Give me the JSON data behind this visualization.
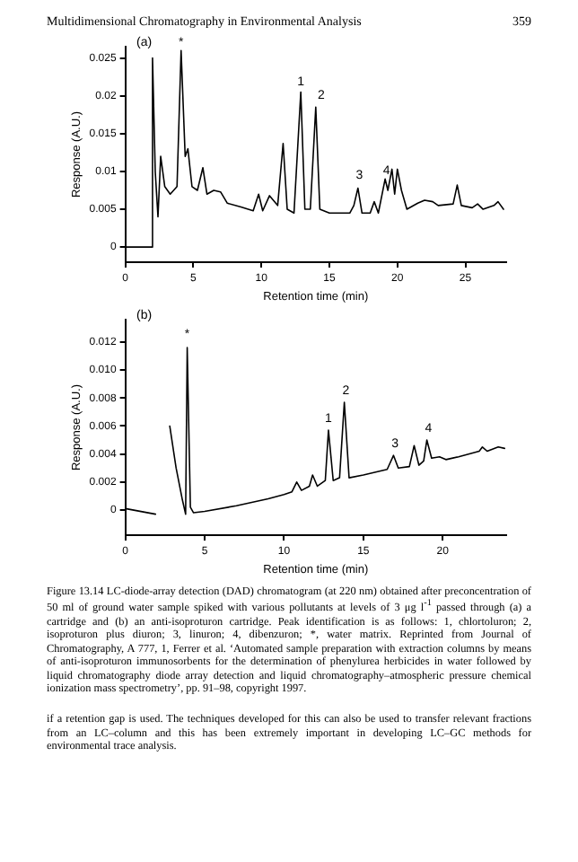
{
  "chart_data": [
    {
      "type": "line",
      "title": "Multidimensional Chromatography in Environmental Analysis",
      "subtitle": "359",
      "xlabel": "Retention time (min)",
      "ylabel": "Response (A.U.)",
      "color": "#000000",
      "legend": false,
      "grid": false,
      "x": [
        0,
        1.9,
        2.0,
        2.2,
        2.4,
        2.6,
        2.9,
        3.3,
        3.8,
        4.1,
        4.4,
        4.6,
        4.9,
        5.3,
        5.7,
        6.0,
        6.5,
        7.0,
        7.5,
        8.5,
        9.4,
        9.8,
        10.1,
        10.6,
        11.2,
        11.6,
        11.9,
        12.4,
        12.9,
        13.2,
        13.6,
        14.0,
        14.3,
        15,
        16.5,
        16.8,
        17.1,
        17.4,
        18.0,
        18.3,
        18.6,
        19.1,
        19.3,
        19.6,
        19.8,
        20.0,
        20.3,
        20.7,
        21.5,
        22.0,
        22.6,
        23,
        24.1,
        24.4,
        24.7,
        25.5,
        25.9,
        26.3,
        27.1,
        27.4,
        27.8
      ],
      "values": [
        0,
        0,
        0.025,
        0.01,
        0.004,
        0.012,
        0.008,
        0.007,
        0.008,
        0.026,
        0.012,
        0.013,
        0.008,
        0.0075,
        0.0105,
        0.007,
        0.0075,
        0.0073,
        0.0058,
        0.0053,
        0.0048,
        0.007,
        0.0048,
        0.0068,
        0.0055,
        0.0137,
        0.005,
        0.0045,
        0.0205,
        0.005,
        0.005,
        0.0185,
        0.005,
        0.0045,
        0.0045,
        0.0055,
        0.0078,
        0.0045,
        0.0045,
        0.006,
        0.0045,
        0.009,
        0.0075,
        0.0103,
        0.007,
        0.0103,
        0.0075,
        0.005,
        0.0058,
        0.0062,
        0.006,
        0.0055,
        0.0057,
        0.0082,
        0.0055,
        0.0052,
        0.0057,
        0.005,
        0.0055,
        0.006,
        0.005
      ],
      "xlim": [
        0,
        28
      ],
      "xticks": [
        0,
        5,
        10,
        15,
        20,
        25
      ],
      "ylim": [
        -0.002,
        0.0265
      ],
      "yticks": [
        0,
        0.005,
        0.01,
        0.015,
        0.02,
        0.025
      ],
      "annotations": [
        "(a)",
        {
          "text": "*",
          "x": 4.1,
          "y": 0.0262
        },
        {
          "text": "1",
          "x": 12.9,
          "y": 0.021
        },
        {
          "text": "2",
          "x": 14.4,
          "y": 0.0193
        },
        {
          "text": "3",
          "x": 17.2,
          "y": 0.0087
        },
        {
          "text": "4",
          "x": 19.2,
          "y": 0.0093
        }
      ]
    },
    {
      "type": "line",
      "xlabel": "Retention time (min)",
      "ylabel": "Response (A.U.)",
      "color": "#000000",
      "legend": false,
      "grid": false,
      "x": [
        0,
        1.9,
        2.0,
        2.7,
        2.8,
        3.2,
        3.6,
        3.8,
        3.9,
        4.1,
        4.3,
        5,
        7,
        9,
        10,
        10.5,
        10.8,
        11.1,
        11.6,
        11.8,
        12.1,
        12.6,
        12.8,
        13.1,
        13.5,
        13.8,
        14.1,
        15,
        16.5,
        16.9,
        17.2,
        17.9,
        18.2,
        18.5,
        18.8,
        19.0,
        19.3,
        19.8,
        20.2,
        21,
        22.3,
        22.5,
        22.8,
        23.5,
        23.9
      ],
      "values": [
        0.0001,
        -0.0003,
        null,
        null,
        0.006,
        0.003,
        0.0007,
        -0.0003,
        0.0116,
        0.0002,
        -0.0002,
        -0.0001,
        0.0003,
        0.0008,
        0.0011,
        0.0013,
        0.002,
        0.0014,
        0.0017,
        0.0025,
        0.0017,
        0.0021,
        0.0057,
        0.0021,
        0.0023,
        0.0077,
        0.0023,
        0.0025,
        0.0029,
        0.0039,
        0.003,
        0.0031,
        0.0046,
        0.0032,
        0.0035,
        0.005,
        0.0037,
        0.0038,
        0.0036,
        0.0038,
        0.0042,
        0.0045,
        0.0042,
        0.0045,
        0.0044
      ],
      "xlim": [
        0,
        24
      ],
      "xticks": [
        0,
        5,
        10,
        15,
        20
      ],
      "ylim": [
        -0.0018,
        0.0136
      ],
      "yticks": [
        0,
        0.002,
        0.004,
        0.006,
        0.008,
        {
          "value": 0.01,
          "label": "0.010"
        },
        0.012
      ],
      "annotations": [
        "(b)",
        "Figure 13.14 LC-diode-array detection (DAD) chromatogram (at 220 nm) obtained after preconcentration of 50 ml of ground water sample spiked with various pollutants at levels of 3 μg l$^{-1}$ passed through (a) a cartridge and (b) an anti-isoproturon cartridge. Peak identification is as follows: 1, chlortoluron; 2, isoproturon plus diuron; 3, linuron; 4, dibenzuron; *, water matrix. Reprinted from Journal of Chromatography, A 777, 1, Ferrer et al. ‘Automated sample preparation with extraction columns by means of anti-isoproturon immunosorbents for the determination of phenylurea herbicides in water followed by liquid chromatography diode array detection and liquid chromatography–atmospheric pressure chemical ionization mass spectrometry’, pp. 91–98, copyright 1997.",
        "if a retention gap is used. The techniques developed for this can also be used to transfer relevant fractions from an LC–column and this has been extremely important in developing LC–GC methods for environmental trace analysis.",
        {
          "text": "*",
          "x": 3.9,
          "y": 0.0121
        },
        {
          "text": "1",
          "x": 12.8,
          "y": 0.0061
        },
        {
          "text": "2",
          "x": 13.9,
          "y": 0.0081
        },
        {
          "text": "3",
          "x": 17.0,
          "y": 0.0043
        },
        {
          "text": "4",
          "x": 19.1,
          "y": 0.0054
        }
      ]
    }
  ]
}
